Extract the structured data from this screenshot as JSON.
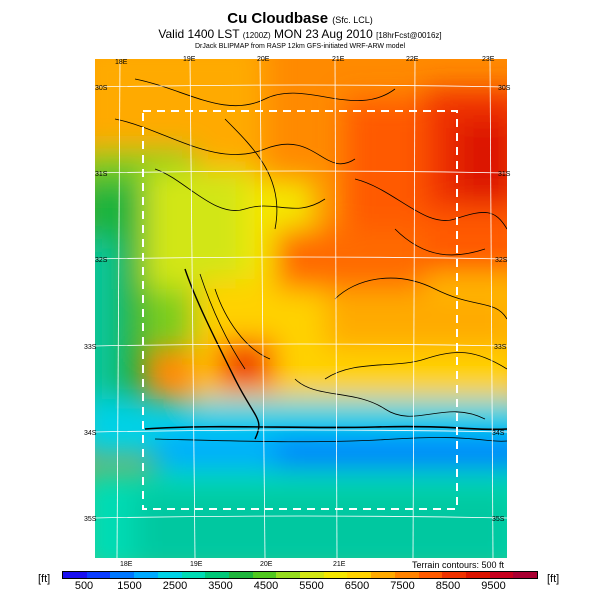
{
  "header": {
    "title_main": "Cu Cloudbase",
    "title_sub": "(Sfc. LCL)",
    "line2_a": "Valid 1400 LST",
    "line2_b": "(1200Z)",
    "line2_c": "MON 23 Aug 2010",
    "line2_d": "[18hrFcst@0016z]",
    "line3": "DrJack BLIPMAP from RASP 12km GFS-initiated WRF-ARW model"
  },
  "map": {
    "lon_top": [
      "18E",
      "19E",
      "20E",
      "21E",
      "22E",
      "23E"
    ],
    "lon_bottom": [
      "18E",
      "19E",
      "20E",
      "21E"
    ],
    "lat_left": [
      "30S",
      "31S",
      "32S",
      "33S",
      "34S",
      "35S"
    ],
    "lat_right": [
      "30S",
      "31S",
      "32S",
      "33S",
      "34S",
      "35S"
    ],
    "terrain_note": "Terrain contours: 500 ft"
  },
  "colorbar": {
    "unit_left": "[ft]",
    "unit_right": "[ft]",
    "ticks": [
      "500",
      "1500",
      "2500",
      "3500",
      "4500",
      "5500",
      "6500",
      "7500",
      "8500",
      "9500"
    ],
    "colors": [
      "#1a0ff0",
      "#0a3cff",
      "#0078ff",
      "#00aaff",
      "#00d2e6",
      "#00dcb4",
      "#00c878",
      "#1eb43c",
      "#50c81e",
      "#96dc1e",
      "#d2e614",
      "#f5e600",
      "#ffd200",
      "#ffaa00",
      "#ff8200",
      "#ff5a00",
      "#f03200",
      "#dc1400",
      "#c8001e",
      "#aa0032"
    ]
  }
}
